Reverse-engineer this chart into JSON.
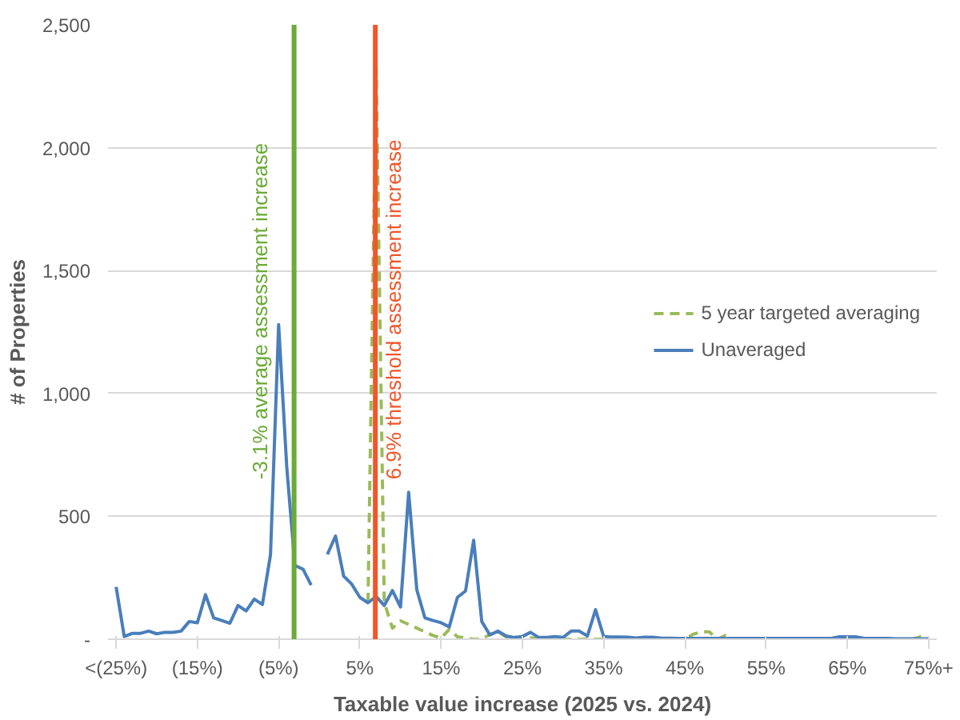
{
  "chart_data": {
    "type": "line",
    "xlabel": "Taxable value increase (2025 vs. 2024)",
    "ylabel": "# of Properties",
    "x": [
      -25,
      -24,
      -23,
      -22,
      -21,
      -20,
      -19,
      -18,
      -17,
      -16,
      -15,
      -14,
      -13,
      -12,
      -11,
      -10,
      -9,
      -8,
      -7,
      -6,
      -5,
      -4,
      -3,
      -2,
      -1,
      0,
      1,
      2,
      3,
      4,
      5,
      6,
      7,
      8,
      9,
      10,
      11,
      12,
      13,
      14,
      15,
      16,
      17,
      18,
      19,
      20,
      21,
      22,
      23,
      24,
      25,
      26,
      27,
      28,
      29,
      30,
      31,
      32,
      33,
      34,
      35,
      36,
      37,
      38,
      39,
      40,
      41,
      42,
      43,
      44,
      45,
      46,
      47,
      48,
      49,
      50,
      51,
      52,
      53,
      54,
      55,
      56,
      57,
      58,
      59,
      60,
      61,
      62,
      63,
      64,
      65,
      66,
      67,
      68,
      69,
      70,
      71,
      72,
      73,
      74,
      75
    ],
    "series": [
      {
        "name": "5 year targeted averaging",
        "color": "#9bbb59",
        "line_style": "dashed",
        "values": [
          null,
          null,
          null,
          null,
          null,
          null,
          null,
          null,
          null,
          null,
          null,
          null,
          null,
          null,
          null,
          null,
          null,
          null,
          null,
          null,
          null,
          null,
          null,
          null,
          null,
          null,
          null,
          null,
          null,
          null,
          null,
          150,
          2320,
          150,
          45,
          75,
          60,
          45,
          30,
          15,
          5,
          40,
          10,
          5,
          0,
          0,
          20,
          30,
          10,
          0,
          0,
          5,
          5,
          5,
          0,
          0,
          0,
          0,
          0,
          0,
          0,
          0,
          0,
          0,
          0,
          0,
          0,
          0,
          0,
          0,
          0,
          20,
          30,
          30,
          0,
          15,
          0,
          0,
          0,
          0,
          0,
          0,
          0,
          0,
          0,
          0,
          0,
          0,
          0,
          0,
          0,
          null,
          0,
          0,
          0,
          0,
          0,
          0,
          0,
          10,
          0
        ]
      },
      {
        "name": "Unaveraged",
        "color": "#4a7ebb",
        "line_style": "solid",
        "values": [
          213,
          11,
          24,
          24,
          33,
          22,
          28,
          28,
          33,
          72,
          67,
          181,
          87,
          76,
          65,
          137,
          115,
          163,
          141,
          344,
          1280,
          700,
          300,
          285,
          220,
          null,
          345,
          420,
          257,
          224,
          170,
          148,
          174,
          137,
          198,
          131,
          598,
          202,
          87,
          76,
          67,
          50,
          170,
          196,
          403,
          72,
          17,
          33,
          13,
          7,
          11,
          28,
          7,
          7,
          11,
          7,
          33,
          33,
          13,
          120,
          11,
          9,
          9,
          8,
          5,
          8,
          8,
          5,
          4,
          3,
          3,
          3,
          3,
          3,
          3,
          3,
          3,
          3,
          3,
          3,
          3,
          3,
          3,
          3,
          3,
          3,
          3,
          3,
          3,
          10,
          10,
          10,
          4,
          3,
          3,
          3,
          2,
          2,
          2,
          2,
          2
        ]
      }
    ],
    "xlim": [
      -26,
      76
    ],
    "xticks": [
      {
        "value": -25,
        "label": "<(25%)"
      },
      {
        "value": -15,
        "label": "(15%)"
      },
      {
        "value": -5,
        "label": "(5%)"
      },
      {
        "value": 5,
        "label": "5%"
      },
      {
        "value": 15,
        "label": "15%"
      },
      {
        "value": 25,
        "label": "25%"
      },
      {
        "value": 35,
        "label": "35%"
      },
      {
        "value": 45,
        "label": "45%"
      },
      {
        "value": 55,
        "label": "55%"
      },
      {
        "value": 65,
        "label": "65%"
      },
      {
        "value": 75,
        "label": "75%+"
      }
    ],
    "ylim": [
      0,
      2500
    ],
    "yticks": [
      {
        "value": 0,
        "label": "-"
      },
      {
        "value": 500,
        "label": "500"
      },
      {
        "value": 1000,
        "label": "1,000"
      },
      {
        "value": 1500,
        "label": "1,500"
      },
      {
        "value": 2000,
        "label": "2,000"
      },
      {
        "value": 2500,
        "label": "2,500"
      }
    ],
    "ref_lines": [
      {
        "axis": "x",
        "value": -3.1,
        "label": "-3.1% average assessment increase",
        "color": "#6aaa36"
      },
      {
        "axis": "x",
        "value": 6.9,
        "label": "6.9% threshold assessment increase",
        "color": "#f0562a"
      }
    ],
    "grid": "y",
    "legend": "right"
  }
}
